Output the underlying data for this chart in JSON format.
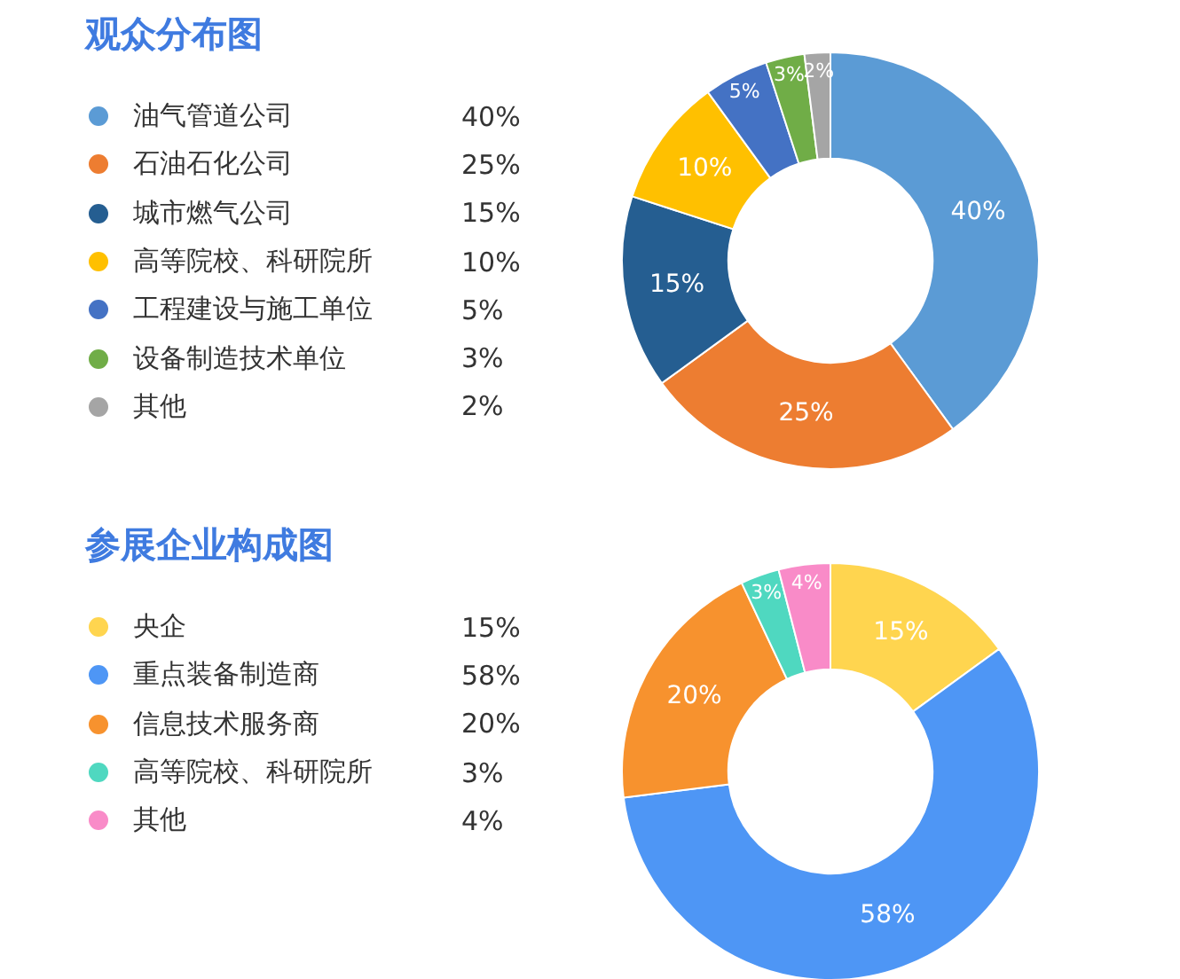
{
  "chart_data": [
    {
      "type": "donut",
      "title": "观众分布图",
      "legend": "left",
      "categories": [
        "油气管道公司",
        "石油石化公司",
        "城市燃气公司",
        "高等院校、科研院所",
        "工程建设与施工单位",
        "设备制造技术单位",
        "其他"
      ],
      "values": [
        40,
        25,
        15,
        10,
        5,
        3,
        2
      ],
      "value_labels": [
        "40%",
        "25%",
        "15%",
        "10%",
        "5%",
        "3%",
        "2%"
      ],
      "colors": [
        "#5b9bd5",
        "#ed7d31",
        "#255e91",
        "#ffc000",
        "#4472c4",
        "#70ad47",
        "#a5a5a5"
      ]
    },
    {
      "type": "donut",
      "title": "参展企业构成图",
      "legend": "left",
      "categories": [
        "央企",
        "重点装备制造商",
        "信息技术服务商",
        "高等院校、科研院所",
        "其他"
      ],
      "values": [
        15,
        58,
        20,
        3,
        4
      ],
      "value_labels": [
        "15%",
        "58%",
        "20%",
        "3%",
        "4%"
      ],
      "colors": [
        "#ffd54f",
        "#4e96f5",
        "#f7922e",
        "#4fd8c0",
        "#f98bc8"
      ]
    }
  ]
}
